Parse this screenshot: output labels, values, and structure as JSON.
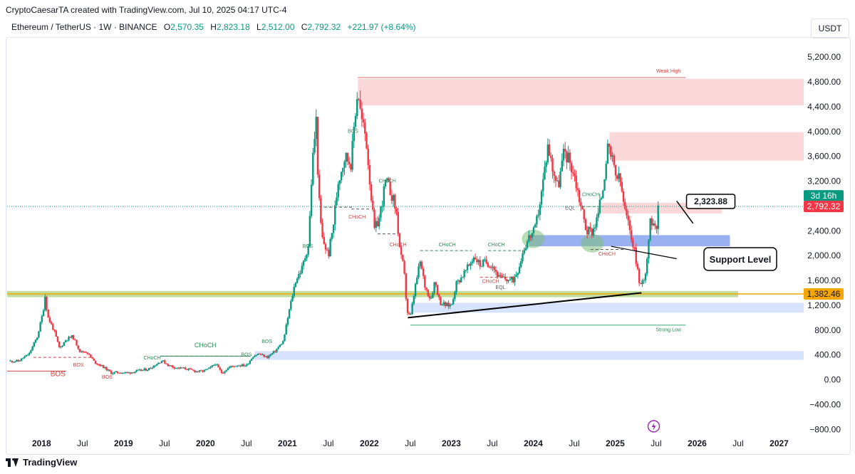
{
  "header": {
    "publisher_line": "CryptoCaesarTA created with TradingView.com, Jul 10, 2025 04:17 UTC-4",
    "symbol": "Ethereum / TetherUS · 1W · BINANCE",
    "o_label": "O",
    "o_value": "2,570.35",
    "h_label": "H",
    "h_value": "2,823.18",
    "l_label": "L",
    "l_value": "2,512.00",
    "c_label": "C",
    "c_value": "2,792.32",
    "change": "+221.97 (+8.64%)",
    "currency_button": "USDT"
  },
  "footer": {
    "brand": "TradingView"
  },
  "colors": {
    "up": "#089981",
    "down": "#f23645",
    "accent_orange": "#f7a600",
    "support_blue": "#8fa8f0",
    "green_band": "#8cc152"
  },
  "icons": [
    "lightning-icon",
    "tradingview-logo-icon"
  ],
  "chart_data": {
    "type": "candlestick",
    "title": "Ethereum / TetherUS · 1W · BINANCE",
    "y_axis": {
      "ticks": [
        5200,
        4800,
        4400,
        4000,
        3600,
        3200,
        2400,
        2000,
        1600,
        1200,
        800,
        400,
        0,
        -400,
        -800
      ],
      "tick_labels": [
        "5,200.00",
        "4,800.00",
        "4,400.00",
        "4,000.00",
        "3,600.00",
        "3,200.00",
        "2,400.00",
        "2,000.00",
        "1,600.00",
        "1,200.00",
        "800.00",
        "400.00",
        "0.00",
        "−400.00",
        "−800.00"
      ],
      "range": [
        -900,
        5500
      ]
    },
    "x_axis": {
      "range": [
        "2017-08",
        "2027-03"
      ],
      "tick_labels": [
        {
          "label": "2018",
          "date": 2018.0,
          "bold": true
        },
        {
          "label": "Jul",
          "date": 2018.5,
          "bold": false
        },
        {
          "label": "2019",
          "date": 2019.0,
          "bold": true
        },
        {
          "label": "Jul",
          "date": 2019.5,
          "bold": false
        },
        {
          "label": "2020",
          "date": 2020.0,
          "bold": true
        },
        {
          "label": "Jul",
          "date": 2020.5,
          "bold": false
        },
        {
          "label": "2021",
          "date": 2021.0,
          "bold": true
        },
        {
          "label": "Jul",
          "date": 2021.5,
          "bold": false
        },
        {
          "label": "2022",
          "date": 2022.0,
          "bold": true
        },
        {
          "label": "Jul",
          "date": 2022.5,
          "bold": false
        },
        {
          "label": "2023",
          "date": 2023.0,
          "bold": true
        },
        {
          "label": "Jul",
          "date": 2023.5,
          "bold": false
        },
        {
          "label": "2024",
          "date": 2024.0,
          "bold": true
        },
        {
          "label": "Jul",
          "date": 2024.5,
          "bold": false
        },
        {
          "label": "2025",
          "date": 2025.0,
          "bold": true
        },
        {
          "label": "Jul",
          "date": 2025.5,
          "bold": false
        },
        {
          "label": "2026",
          "date": 2026.0,
          "bold": true
        },
        {
          "label": "Jul",
          "date": 2026.5,
          "bold": false
        },
        {
          "label": "2027",
          "date": 2027.0,
          "bold": true
        }
      ]
    },
    "price_path": [
      [
        2017.62,
        300
      ],
      [
        2017.72,
        300
      ],
      [
        2017.85,
        420
      ],
      [
        2017.95,
        700
      ],
      [
        2018.02,
        1100
      ],
      [
        2018.04,
        1380
      ],
      [
        2018.08,
        1000
      ],
      [
        2018.15,
        800
      ],
      [
        2018.22,
        500
      ],
      [
        2018.3,
        650
      ],
      [
        2018.38,
        700
      ],
      [
        2018.47,
        450
      ],
      [
        2018.55,
        450
      ],
      [
        2018.65,
        280
      ],
      [
        2018.75,
        210
      ],
      [
        2018.85,
        110
      ],
      [
        2018.95,
        120
      ],
      [
        2019.05,
        110
      ],
      [
        2019.15,
        135
      ],
      [
        2019.3,
        170
      ],
      [
        2019.4,
        250
      ],
      [
        2019.47,
        310
      ],
      [
        2019.55,
        230
      ],
      [
        2019.65,
        190
      ],
      [
        2019.75,
        180
      ],
      [
        2019.87,
        140
      ],
      [
        2019.95,
        130
      ],
      [
        2020.05,
        180
      ],
      [
        2020.12,
        260
      ],
      [
        2020.2,
        110
      ],
      [
        2020.3,
        210
      ],
      [
        2020.4,
        235
      ],
      [
        2020.5,
        230
      ],
      [
        2020.58,
        380
      ],
      [
        2020.65,
        420
      ],
      [
        2020.75,
        360
      ],
      [
        2020.85,
        460
      ],
      [
        2020.95,
        620
      ],
      [
        2021.02,
        1100
      ],
      [
        2021.1,
        1600
      ],
      [
        2021.18,
        1800
      ],
      [
        2021.26,
        2200
      ],
      [
        2021.3,
        3400
      ],
      [
        2021.35,
        4200
      ],
      [
        2021.38,
        3000
      ],
      [
        2021.42,
        2300
      ],
      [
        2021.5,
        2000
      ],
      [
        2021.56,
        2500
      ],
      [
        2021.62,
        3200
      ],
      [
        2021.7,
        3600
      ],
      [
        2021.78,
        3500
      ],
      [
        2021.82,
        4200
      ],
      [
        2021.86,
        4700
      ],
      [
        2021.9,
        4200
      ],
      [
        2021.96,
        3900
      ],
      [
        2022.02,
        3000
      ],
      [
        2022.06,
        2400
      ],
      [
        2022.12,
        2600
      ],
      [
        2022.2,
        3200
      ],
      [
        2022.27,
        3000
      ],
      [
        2022.33,
        2700
      ],
      [
        2022.38,
        2000
      ],
      [
        2022.42,
        1800
      ],
      [
        2022.46,
        1100
      ],
      [
        2022.5,
        1000
      ],
      [
        2022.56,
        1500
      ],
      [
        2022.62,
        1900
      ],
      [
        2022.68,
        1500
      ],
      [
        2022.75,
        1300
      ],
      [
        2022.8,
        1600
      ],
      [
        2022.86,
        1250
      ],
      [
        2022.93,
        1200
      ],
      [
        2023.0,
        1200
      ],
      [
        2023.06,
        1550
      ],
      [
        2023.12,
        1650
      ],
      [
        2023.2,
        1800
      ],
      [
        2023.28,
        2000
      ],
      [
        2023.35,
        1850
      ],
      [
        2023.42,
        1900
      ],
      [
        2023.5,
        1850
      ],
      [
        2023.58,
        1650
      ],
      [
        2023.66,
        1620
      ],
      [
        2023.75,
        1600
      ],
      [
        2023.82,
        1800
      ],
      [
        2023.88,
        2100
      ],
      [
        2023.95,
        2300
      ],
      [
        2024.02,
        2400
      ],
      [
        2024.1,
        3000
      ],
      [
        2024.18,
        3800
      ],
      [
        2024.22,
        3500
      ],
      [
        2024.3,
        3100
      ],
      [
        2024.38,
        3700
      ],
      [
        2024.45,
        3500
      ],
      [
        2024.5,
        3300
      ],
      [
        2024.55,
        3000
      ],
      [
        2024.6,
        2700
      ],
      [
        2024.65,
        2400
      ],
      [
        2024.72,
        2400
      ],
      [
        2024.78,
        2600
      ],
      [
        2024.85,
        3100
      ],
      [
        2024.9,
        3700
      ],
      [
        2024.95,
        3600
      ],
      [
        2025.0,
        3300
      ],
      [
        2025.06,
        3200
      ],
      [
        2025.12,
        2700
      ],
      [
        2025.2,
        2300
      ],
      [
        2025.26,
        1900
      ],
      [
        2025.3,
        1500
      ],
      [
        2025.34,
        1600
      ],
      [
        2025.38,
        1800
      ],
      [
        2025.42,
        2500
      ],
      [
        2025.47,
        2600
      ],
      [
        2025.5,
        2450
      ],
      [
        2025.53,
        2792
      ]
    ],
    "last_price": 2792.32,
    "last_price_label": "2,792.32",
    "countdown_label": "3d 16h",
    "support_price": 1382.46,
    "support_price_label": "1,382.46",
    "annotations": {
      "callout_value": "2,323.88",
      "support_level_text": "Support Level",
      "weak_high": "Weak High",
      "strong_low": "Strong Low",
      "bos_labels": [
        "BOS",
        "BOS",
        "BOS",
        "BOS",
        "BOS",
        "BOS",
        "BOS"
      ],
      "choch_labels": [
        "CHoCH",
        "CHoCH",
        "CHoCH",
        "CHoCH",
        "CHoCH",
        "CHoCH",
        "CHoCH",
        "CHoCH",
        "CHoCH",
        "CHoCH"
      ],
      "eql_labels": [
        "EQL",
        "EQL"
      ]
    },
    "zones": [
      {
        "name": "weak-high-zone",
        "from": 2021.86,
        "to": 2027.3,
        "low": 4420,
        "high": 4850,
        "color": "#f8c9cc"
      },
      {
        "name": "supply-zone-2024",
        "from": 2024.93,
        "to": 2027.3,
        "low": 3530,
        "high": 3990,
        "color": "#f8c9cc"
      },
      {
        "name": "resistance-band",
        "from": 2024.8,
        "to": 2026.3,
        "low": 2680,
        "high": 2850,
        "color": "#f8c9cc"
      },
      {
        "name": "support-zone-blue",
        "from": 2023.95,
        "to": 2026.4,
        "low": 2150,
        "high": 2330,
        "color": "#8fa8f0"
      },
      {
        "name": "demand-zone-2022",
        "from": 2022.5,
        "to": 2027.3,
        "low": 1080,
        "high": 1240,
        "color": "#c9d8fb"
      },
      {
        "name": "demand-zone-2020",
        "from": 2020.6,
        "to": 2027.3,
        "low": 320,
        "high": 460,
        "color": "#c9d8fb"
      }
    ],
    "grid": false,
    "legend": "none"
  }
}
